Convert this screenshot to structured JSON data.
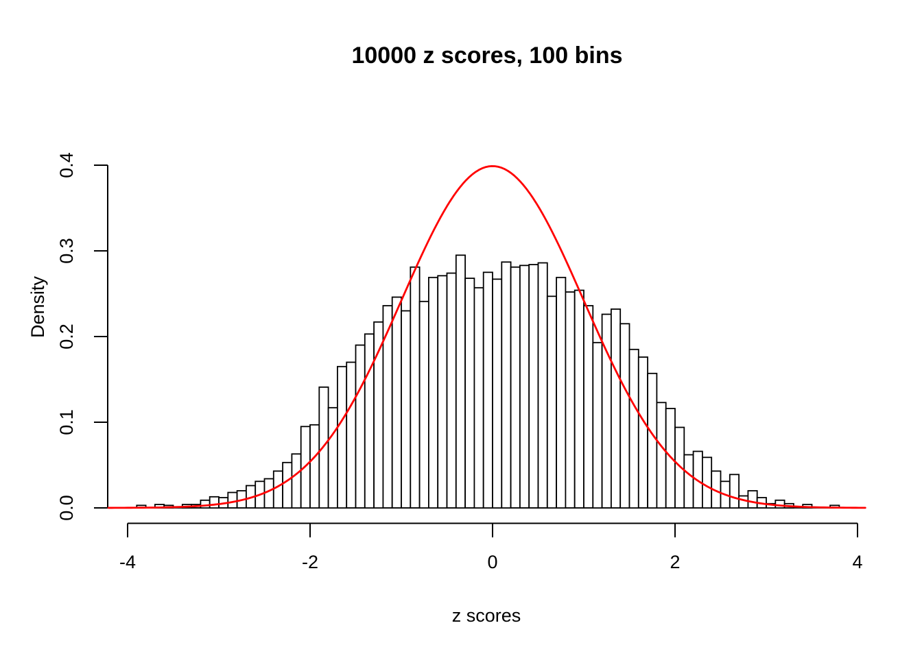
{
  "chart_data": {
    "type": "bar",
    "subtype": "histogram-with-density-curve",
    "title": "10000 z scores, 100 bins",
    "xlabel": "z scores",
    "ylabel": "Density",
    "xlim": [
      -4.2,
      4.2
    ],
    "ylim": [
      0.0,
      0.4
    ],
    "grid": false,
    "legend": "none",
    "x_ticks": [
      {
        "value": -4,
        "label": "-4"
      },
      {
        "value": -2,
        "label": "-2"
      },
      {
        "value": 0,
        "label": "0"
      },
      {
        "value": 2,
        "label": "2"
      },
      {
        "value": 4,
        "label": "4"
      }
    ],
    "y_ticks": [
      {
        "value": 0.0,
        "label": "0.0"
      },
      {
        "value": 0.1,
        "label": "0.1"
      },
      {
        "value": 0.2,
        "label": "0.2"
      },
      {
        "value": 0.3,
        "label": "0.3"
      },
      {
        "value": 0.4,
        "label": "0.4"
      }
    ],
    "bins": {
      "start": -3.9,
      "width": 0.1,
      "densities": [
        0.003,
        0,
        0.004,
        0.003,
        0,
        0.004,
        0.004,
        0.009,
        0.013,
        0.012,
        0.018,
        0.02,
        0.026,
        0.031,
        0.034,
        0.043,
        0.053,
        0.063,
        0.095,
        0.097,
        0.141,
        0.117,
        0.165,
        0.17,
        0.19,
        0.203,
        0.217,
        0.236,
        0.246,
        0.23,
        0.281,
        0.241,
        0.269,
        0.271,
        0.274,
        0.295,
        0.268,
        0.257,
        0.275,
        0.267,
        0.287,
        0.281,
        0.283,
        0.284,
        0.286,
        0.247,
        0.269,
        0.252,
        0.254,
        0.236,
        0.193,
        0.226,
        0.232,
        0.215,
        0.185,
        0.176,
        0.157,
        0.123,
        0.116,
        0.094,
        0.062,
        0.066,
        0.059,
        0.043,
        0.031,
        0.039,
        0.014,
        0.02,
        0.012,
        0.005,
        0.009,
        0.005,
        0,
        0.004,
        0,
        0,
        0.003,
        0
      ]
    },
    "overlay_curve": {
      "name": "standard-normal-density",
      "mean": 0,
      "sd": 1,
      "peak_density": 0.399,
      "x_range": [
        -4.21,
        4.1
      ],
      "color": "#FF0000"
    },
    "colors": {
      "bar_fill": "#FFFFFF",
      "bar_stroke": "#000000",
      "axis": "#000000",
      "curve": "#FF0000",
      "background": "#FFFFFF"
    }
  }
}
